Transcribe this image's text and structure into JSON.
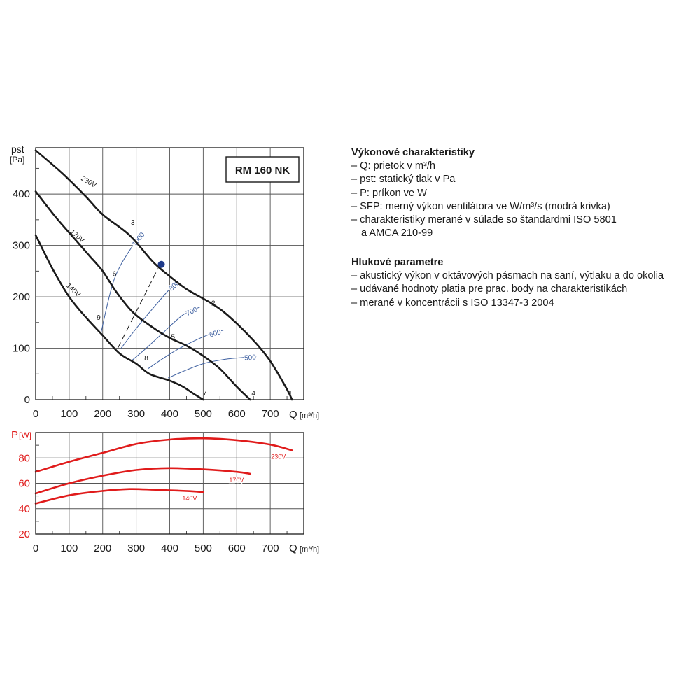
{
  "chart_data": [
    {
      "type": "line",
      "title": "RM 160 NK",
      "xlabel": "Q",
      "xunit": "[m³/h]",
      "ylabel_main": "pst",
      "yunit": "[Pa]",
      "x_ticks": [
        0,
        100,
        200,
        300,
        400,
        500,
        600,
        700
      ],
      "y_ticks": [
        0,
        100,
        200,
        300,
        400
      ],
      "xlim": [
        0,
        800
      ],
      "ylim": [
        0,
        490
      ],
      "grid": true,
      "colors": {
        "curve": "#1a1a1a",
        "sfp": "#3d5fa0",
        "point": "#1e3a8a"
      },
      "series": [
        {
          "name": "230V",
          "x": [
            0,
            80,
            150,
            200,
            280,
            350,
            400,
            450,
            530,
            580,
            650,
            700,
            750,
            765
          ],
          "y": [
            485,
            440,
            395,
            360,
            320,
            268,
            240,
            215,
            185,
            160,
            115,
            75,
            20,
            0
          ]
        },
        {
          "name": "170V",
          "x": [
            0,
            60,
            120,
            160,
            200,
            240,
            290,
            350,
            400,
            450,
            500,
            550,
            600,
            640
          ],
          "y": [
            405,
            355,
            310,
            280,
            250,
            210,
            170,
            140,
            120,
            105,
            85,
            60,
            25,
            0
          ]
        },
        {
          "name": "140V",
          "x": [
            0,
            50,
            100,
            150,
            200,
            250,
            300,
            340,
            400,
            440,
            470,
            500
          ],
          "y": [
            320,
            255,
            200,
            160,
            125,
            90,
            70,
            50,
            37,
            25,
            12,
            0
          ]
        }
      ],
      "sfp_curves": [
        {
          "label": "1000",
          "x": [
            195,
            235,
            290,
            320
          ],
          "y": [
            130,
            235,
            300,
            325
          ]
        },
        {
          "label": "800",
          "x": [
            255,
            290,
            340,
            400,
            425
          ],
          "y": [
            100,
            130,
            170,
            215,
            230
          ]
        },
        {
          "label": "700",
          "x": [
            285,
            330,
            380,
            440,
            490
          ],
          "y": [
            75,
            100,
            130,
            165,
            180
          ]
        },
        {
          "label": "600",
          "x": [
            335,
            380,
            430,
            510,
            560
          ],
          "y": [
            60,
            80,
            100,
            125,
            135
          ]
        },
        {
          "label": "500",
          "x": [
            395,
            440,
            500,
            560,
            620,
            660
          ],
          "y": [
            42,
            55,
            70,
            78,
            82,
            84
          ]
        }
      ],
      "dashed_line": {
        "x": [
          245,
          365
        ],
        "y": [
          100,
          255
        ]
      },
      "operating_point": {
        "x": 375,
        "y": 263
      },
      "point_labels": [
        {
          "label": "1",
          "x": 760,
          "y": 8
        },
        {
          "label": "2",
          "x": 530,
          "y": 183
        },
        {
          "label": "3",
          "x": 290,
          "y": 340
        },
        {
          "label": "4",
          "x": 650,
          "y": 8
        },
        {
          "label": "5",
          "x": 410,
          "y": 118
        },
        {
          "label": "6",
          "x": 235,
          "y": 240
        },
        {
          "label": "7",
          "x": 505,
          "y": 8
        },
        {
          "label": "8",
          "x": 330,
          "y": 76
        },
        {
          "label": "9",
          "x": 188,
          "y": 155
        }
      ],
      "voltage_labels": [
        {
          "label": "230V",
          "x": 155,
          "y": 420,
          "angle": 30
        },
        {
          "label": "170V",
          "x": 120,
          "y": 315,
          "angle": 40
        },
        {
          "label": "140V",
          "x": 108,
          "y": 210,
          "angle": 44
        }
      ]
    },
    {
      "type": "line",
      "xlabel": "Q",
      "xunit": "[m³/h]",
      "ylabel": "P",
      "yunit": "[W]",
      "x_ticks": [
        0,
        100,
        200,
        300,
        400,
        500,
        600,
        700
      ],
      "y_ticks": [
        20,
        40,
        60,
        80
      ],
      "xlim": [
        0,
        800
      ],
      "ylim": [
        20,
        100
      ],
      "grid": true,
      "colors": {
        "curve": "#e01b1b",
        "axis_label": "#e01b1b"
      },
      "series": [
        {
          "name": "230V",
          "x": [
            0,
            100,
            200,
            300,
            400,
            500,
            600,
            700,
            765
          ],
          "y": [
            69,
            77,
            84,
            91,
            94.5,
            95.5,
            94,
            90.5,
            86
          ]
        },
        {
          "name": "170V",
          "x": [
            0,
            100,
            200,
            300,
            400,
            500,
            600,
            640
          ],
          "y": [
            52,
            60,
            66,
            70.5,
            72,
            71,
            69,
            67.5
          ]
        },
        {
          "name": "140V",
          "x": [
            0,
            100,
            200,
            280,
            350,
            400,
            460,
            500
          ],
          "y": [
            44,
            50.5,
            54,
            55.5,
            55,
            54.5,
            53.8,
            53
          ]
        }
      ]
    }
  ],
  "description": {
    "performance": {
      "heading": "Výkonové charakteristiky",
      "lines": [
        "– Q: prietok v m³/h",
        "– pst: statický tlak v Pa",
        "– P: príkon ve W",
        "– SFP: merný výkon ventilátora ve W/m³/s (modrá krivka)",
        "– charakteristiky merané v súlade so štandardmi ISO 5801",
        "a AMCA 210-99"
      ]
    },
    "noise": {
      "heading": "Hlukové parametre",
      "lines": [
        "– akustický výkon v oktávových pásmach na saní, výtlaku a do okolia",
        "– udávané hodnoty platia pre prac. body na charakteristikách",
        "– merané v koncentrácii s ISO 13347-3 2004"
      ]
    }
  }
}
